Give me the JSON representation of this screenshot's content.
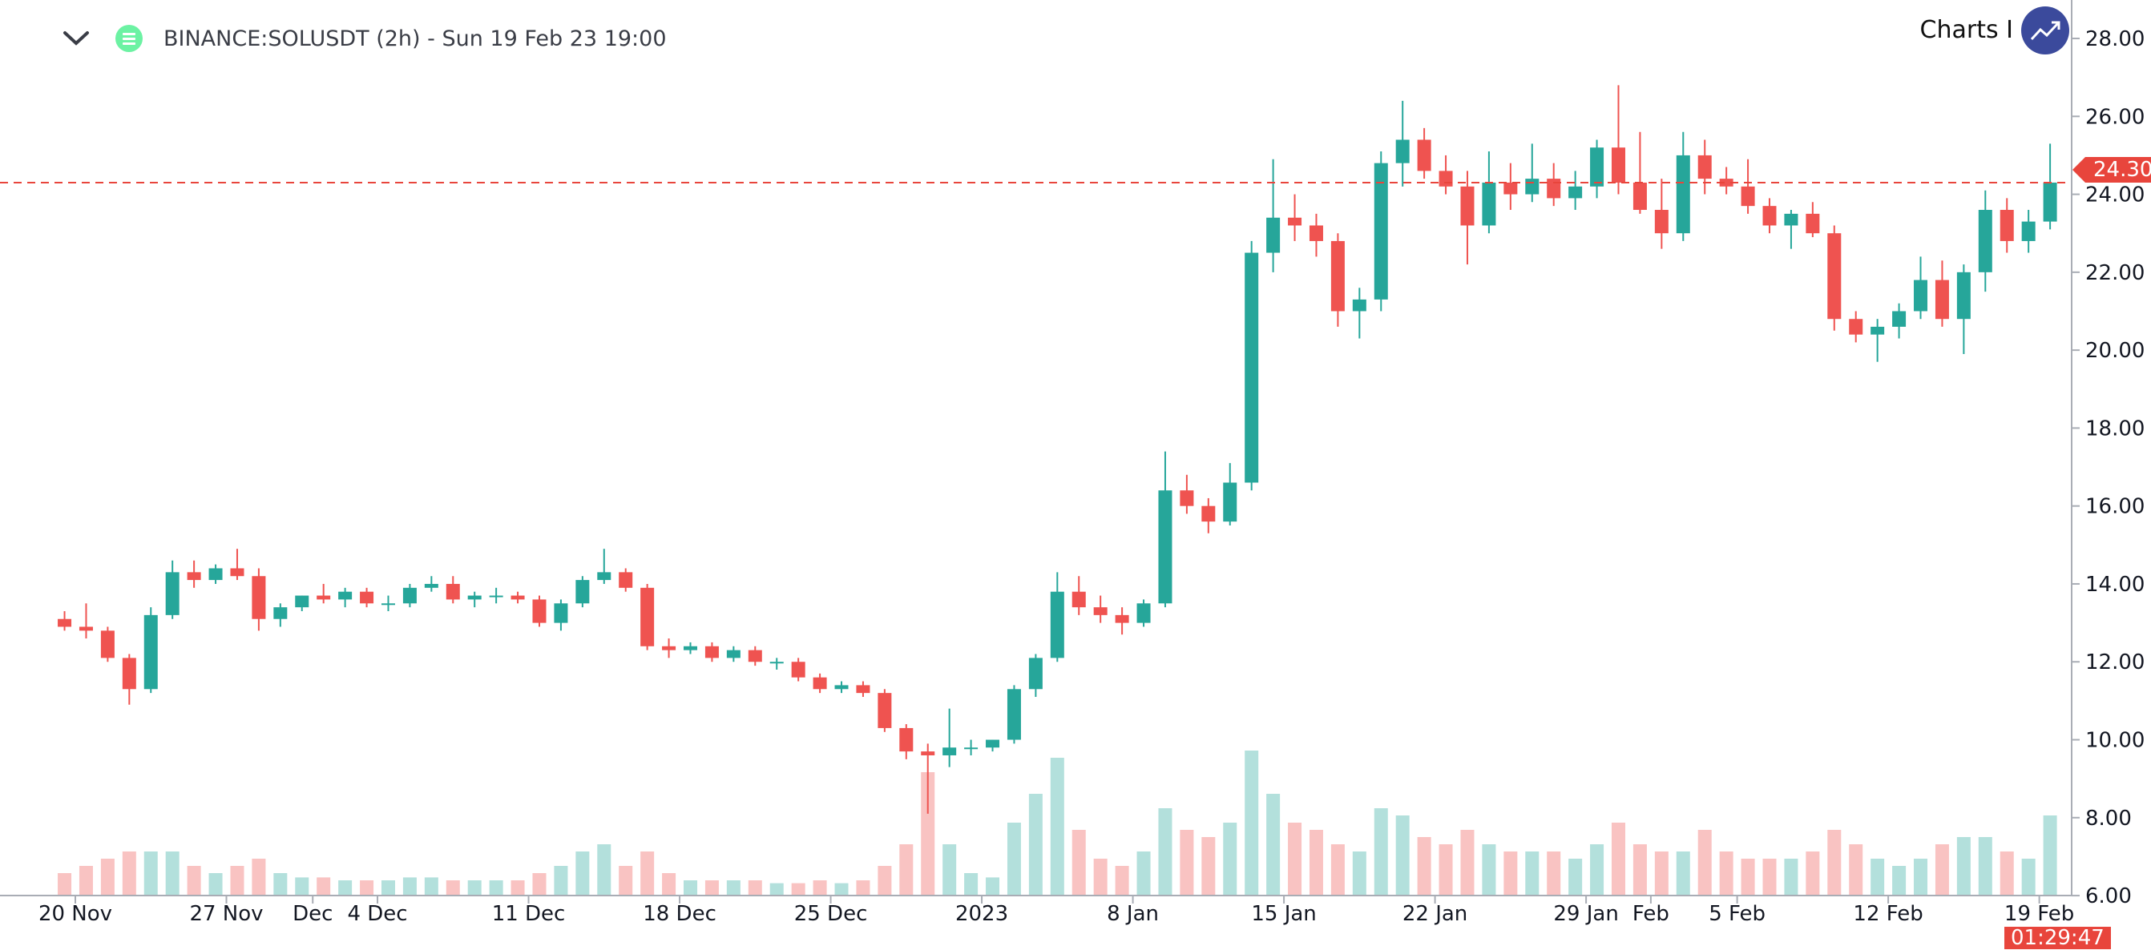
{
  "header": {
    "title": "BINANCE:SOLUSDT (2h) - Sun 19 Feb 23 19:00",
    "brand_text": "Charts I"
  },
  "colors": {
    "up": "#26a69a",
    "down": "#ef5350",
    "last_price": "#e8453c",
    "brand": "#3b4a9c",
    "symbol_logo": "#6cf2a3"
  },
  "chart_data": {
    "type": "candlestick",
    "symbol": "BINANCE:SOLUSDT",
    "interval_shown": "2h",
    "note": "approximated daily aggregation of the pictured 2h candles",
    "start_date": "2022-11-19",
    "dates_step": "1 day",
    "open": [
      13.1,
      12.9,
      12.8,
      12.1,
      11.3,
      13.2,
      14.3,
      14.1,
      14.4,
      14.2,
      13.1,
      13.4,
      13.7,
      13.6,
      13.8,
      13.5,
      13.5,
      13.9,
      14.0,
      13.6,
      13.7,
      13.7,
      13.6,
      13.0,
      13.5,
      14.1,
      14.3,
      13.9,
      12.4,
      12.3,
      12.4,
      12.1,
      12.3,
      12.0,
      12.0,
      11.6,
      11.3,
      11.4,
      11.2,
      10.3,
      9.7,
      9.6,
      9.8,
      9.8,
      10.0,
      11.3,
      12.1,
      13.8,
      13.4,
      13.2,
      13.0,
      13.5,
      16.4,
      16.0,
      15.6,
      16.6,
      22.5,
      23.4,
      23.2,
      22.8,
      21.0,
      21.3,
      24.8,
      25.4,
      24.6,
      24.2,
      23.2,
      24.3,
      24.0,
      24.4,
      23.9,
      24.2,
      25.2,
      24.3,
      23.6,
      23.0,
      25.0,
      24.4,
      24.2,
      23.7,
      23.2,
      23.5,
      23.0,
      20.8,
      20.4,
      20.6,
      21.0,
      21.8,
      20.8,
      22.0,
      23.6,
      22.8,
      23.3
    ],
    "high": [
      13.3,
      13.5,
      12.9,
      12.2,
      13.4,
      14.6,
      14.6,
      14.5,
      14.9,
      14.4,
      13.5,
      13.7,
      14.0,
      13.9,
      13.9,
      13.7,
      14.0,
      14.2,
      14.2,
      13.8,
      13.9,
      13.8,
      13.7,
      13.6,
      14.2,
      14.9,
      14.4,
      14.0,
      12.6,
      12.5,
      12.5,
      12.4,
      12.4,
      12.1,
      12.1,
      11.7,
      11.5,
      11.5,
      11.3,
      10.4,
      9.9,
      10.8,
      10.0,
      10.0,
      11.4,
      12.2,
      14.3,
      14.2,
      13.7,
      13.4,
      13.6,
      17.4,
      16.8,
      16.2,
      17.1,
      22.8,
      24.9,
      24.0,
      23.5,
      23.0,
      21.6,
      25.1,
      26.4,
      25.7,
      25.0,
      24.6,
      25.1,
      24.8,
      25.3,
      24.8,
      24.6,
      25.4,
      26.8,
      25.6,
      24.4,
      25.6,
      25.4,
      24.7,
      24.9,
      23.9,
      23.6,
      23.8,
      23.2,
      21.0,
      20.8,
      21.2,
      22.4,
      22.3,
      22.2,
      24.1,
      23.9,
      23.6,
      25.3
    ],
    "low": [
      12.8,
      12.6,
      12.0,
      10.9,
      11.2,
      13.1,
      13.9,
      14.0,
      14.1,
      12.8,
      12.9,
      13.3,
      13.5,
      13.4,
      13.4,
      13.3,
      13.4,
      13.8,
      13.5,
      13.4,
      13.5,
      13.5,
      12.9,
      12.8,
      13.4,
      14.0,
      13.8,
      12.3,
      12.1,
      12.2,
      12.0,
      12.0,
      11.9,
      11.8,
      11.5,
      11.2,
      11.2,
      11.1,
      10.2,
      9.5,
      8.1,
      9.3,
      9.6,
      9.7,
      9.9,
      11.1,
      12.0,
      13.2,
      13.0,
      12.7,
      12.9,
      13.4,
      15.8,
      15.3,
      15.5,
      16.4,
      22.0,
      22.8,
      22.4,
      20.6,
      20.3,
      21.0,
      24.2,
      24.4,
      24.0,
      22.2,
      23.0,
      23.6,
      23.8,
      23.7,
      23.6,
      23.9,
      24.0,
      23.5,
      22.6,
      22.8,
      24.0,
      24.0,
      23.5,
      23.0,
      22.6,
      22.9,
      20.5,
      20.2,
      19.7,
      20.3,
      20.8,
      20.6,
      19.9,
      21.5,
      22.5,
      22.5,
      23.1
    ],
    "close": [
      12.9,
      12.8,
      12.1,
      11.3,
      13.2,
      14.3,
      14.1,
      14.4,
      14.2,
      13.1,
      13.4,
      13.7,
      13.6,
      13.8,
      13.5,
      13.5,
      13.9,
      14.0,
      13.6,
      13.7,
      13.7,
      13.6,
      13.0,
      13.5,
      14.1,
      14.3,
      13.9,
      12.4,
      12.3,
      12.4,
      12.1,
      12.3,
      12.0,
      12.0,
      11.6,
      11.3,
      11.4,
      11.2,
      10.3,
      9.7,
      9.6,
      9.8,
      9.8,
      10.0,
      11.3,
      12.1,
      13.8,
      13.4,
      13.2,
      13.0,
      13.5,
      16.4,
      16.0,
      15.6,
      16.6,
      22.5,
      23.4,
      23.2,
      22.8,
      21.0,
      21.3,
      24.8,
      25.4,
      24.6,
      24.2,
      23.2,
      24.3,
      24.0,
      24.4,
      23.9,
      24.2,
      25.2,
      24.3,
      23.6,
      23.0,
      25.0,
      24.4,
      24.2,
      23.7,
      23.2,
      23.5,
      23.0,
      20.8,
      20.4,
      20.6,
      21.0,
      21.8,
      20.8,
      22.0,
      23.6,
      22.8,
      23.3,
      24.3
    ],
    "volume_relative": [
      0.15,
      0.2,
      0.25,
      0.3,
      0.3,
      0.3,
      0.2,
      0.15,
      0.2,
      0.25,
      0.15,
      0.12,
      0.12,
      0.1,
      0.1,
      0.1,
      0.12,
      0.12,
      0.1,
      0.1,
      0.1,
      0.1,
      0.15,
      0.2,
      0.3,
      0.35,
      0.2,
      0.3,
      0.15,
      0.1,
      0.1,
      0.1,
      0.1,
      0.08,
      0.08,
      0.1,
      0.08,
      0.1,
      0.2,
      0.35,
      0.85,
      0.35,
      0.15,
      0.12,
      0.5,
      0.7,
      0.95,
      0.45,
      0.25,
      0.2,
      0.3,
      0.6,
      0.45,
      0.4,
      0.5,
      1.0,
      0.7,
      0.5,
      0.45,
      0.35,
      0.3,
      0.6,
      0.55,
      0.4,
      0.35,
      0.45,
      0.35,
      0.3,
      0.3,
      0.3,
      0.25,
      0.35,
      0.5,
      0.35,
      0.3,
      0.3,
      0.45,
      0.3,
      0.25,
      0.25,
      0.25,
      0.3,
      0.45,
      0.35,
      0.25,
      0.2,
      0.25,
      0.35,
      0.4,
      0.4,
      0.3,
      0.25,
      0.55
    ],
    "y_ticks": [
      "6.00",
      "8.00",
      "10.00",
      "12.00",
      "14.00",
      "16.00",
      "18.00",
      "20.00",
      "22.00",
      "24.00",
      "26.00",
      "28.00"
    ],
    "ylim": [
      6,
      28
    ],
    "x_tick_labels": [
      {
        "label": "20 Nov",
        "day": 1
      },
      {
        "label": "27 Nov",
        "day": 8
      },
      {
        "label": "Dec",
        "day": 12
      },
      {
        "label": "4 Dec",
        "day": 15
      },
      {
        "label": "11 Dec",
        "day": 22
      },
      {
        "label": "18 Dec",
        "day": 29
      },
      {
        "label": "25 Dec",
        "day": 36
      },
      {
        "label": "2023",
        "day": 43
      },
      {
        "label": "8 Jan",
        "day": 50
      },
      {
        "label": "15 Jan",
        "day": 57
      },
      {
        "label": "22 Jan",
        "day": 64
      },
      {
        "label": "29 Jan",
        "day": 71
      },
      {
        "label": "Feb",
        "day": 74
      },
      {
        "label": "5 Feb",
        "day": 78
      },
      {
        "label": "12 Feb",
        "day": 85
      },
      {
        "label": "19 Feb",
        "day": 92
      }
    ],
    "last_price": 24.3,
    "last_price_label": "24.30",
    "countdown": "01:29:47",
    "grid": false
  }
}
